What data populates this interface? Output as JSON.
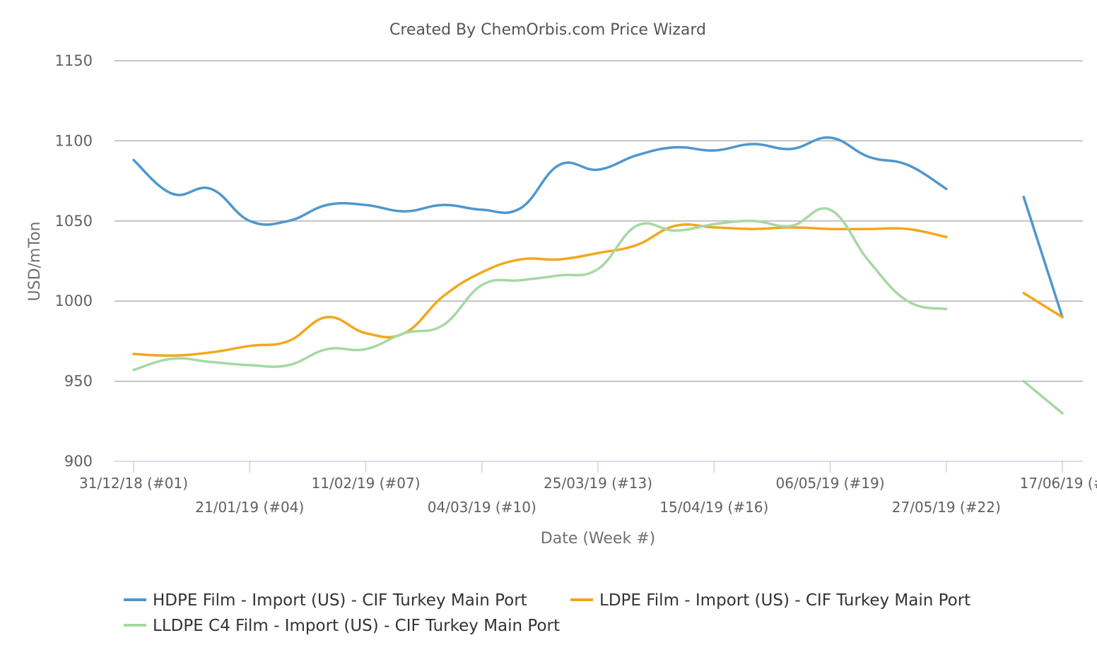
{
  "chart_data": {
    "type": "line",
    "title": "Created By ChemOrbis.com Price Wizard",
    "xlabel": "Date (Week #)",
    "ylabel": "USD/mTon",
    "ylim": [
      900,
      1150
    ],
    "yticks": [
      900,
      950,
      1000,
      1050,
      1100,
      1150
    ],
    "grid": true,
    "legend_position": "bottom",
    "x_tick_labels": [
      "31/12/18 (#01)",
      "21/01/19 (#04)",
      "11/02/19 (#07)",
      "04/03/19 (#10)",
      "25/03/19 (#13)",
      "15/04/19 (#16)",
      "06/05/19 (#19)",
      "27/05/19 (#22)",
      "17/06/19 (#"
    ],
    "x_tick_weeks": [
      1,
      4,
      7,
      10,
      13,
      16,
      19,
      22,
      25
    ],
    "xlim_weeks": [
      0.5,
      25.5
    ],
    "series": [
      {
        "name": "HDPE Film - Import (US) - CIF Turkey Main Port",
        "color": "#4f97cc",
        "segments": [
          [
            [
              1,
              1088
            ],
            [
              2,
              1067
            ],
            [
              3,
              1070
            ],
            [
              4,
              1050
            ],
            [
              5,
              1050
            ],
            [
              6,
              1060
            ],
            [
              7,
              1060
            ],
            [
              8,
              1056
            ],
            [
              9,
              1060
            ],
            [
              10,
              1057
            ],
            [
              11,
              1058
            ],
            [
              12,
              1085
            ],
            [
              13,
              1082
            ],
            [
              14,
              1091
            ],
            [
              15,
              1096
            ],
            [
              16,
              1094
            ],
            [
              17,
              1098
            ],
            [
              18,
              1095
            ],
            [
              19,
              1102
            ],
            [
              20,
              1090
            ],
            [
              21,
              1085
            ],
            [
              22,
              1070
            ]
          ],
          [
            [
              24,
              1065
            ],
            [
              25,
              990
            ]
          ]
        ]
      },
      {
        "name": "LDPE Film - Import (US) - CIF Turkey Main Port",
        "color": "#f2a71d",
        "segments": [
          [
            [
              1,
              967
            ],
            [
              2,
              966
            ],
            [
              3,
              968
            ],
            [
              4,
              972
            ],
            [
              5,
              975
            ],
            [
              6,
              990
            ],
            [
              7,
              980
            ],
            [
              8,
              980
            ],
            [
              9,
              1003
            ],
            [
              10,
              1018
            ],
            [
              11,
              1026
            ],
            [
              12,
              1026
            ],
            [
              13,
              1030
            ],
            [
              14,
              1035
            ],
            [
              15,
              1047
            ],
            [
              16,
              1046
            ],
            [
              17,
              1045
            ],
            [
              18,
              1046
            ],
            [
              19,
              1045
            ],
            [
              20,
              1045
            ],
            [
              21,
              1045
            ],
            [
              22,
              1040
            ]
          ],
          [
            [
              24,
              1005
            ],
            [
              25,
              990
            ]
          ]
        ]
      },
      {
        "name": "LLDPE C4 Film - Import (US) - CIF Turkey Main Port",
        "color": "#a5d9a2",
        "segments": [
          [
            [
              1,
              957
            ],
            [
              2,
              964
            ],
            [
              3,
              962
            ],
            [
              4,
              960
            ],
            [
              5,
              960
            ],
            [
              6,
              970
            ],
            [
              7,
              970
            ],
            [
              8,
              980
            ],
            [
              9,
              985
            ],
            [
              10,
              1010
            ],
            [
              11,
              1013
            ],
            [
              12,
              1016
            ],
            [
              13,
              1020
            ],
            [
              14,
              1047
            ],
            [
              15,
              1044
            ],
            [
              16,
              1048
            ],
            [
              17,
              1050
            ],
            [
              18,
              1047
            ],
            [
              19,
              1057
            ],
            [
              20,
              1025
            ],
            [
              21,
              1000
            ],
            [
              22,
              995
            ]
          ],
          [
            [
              24,
              950
            ],
            [
              25,
              930
            ]
          ]
        ]
      }
    ]
  }
}
